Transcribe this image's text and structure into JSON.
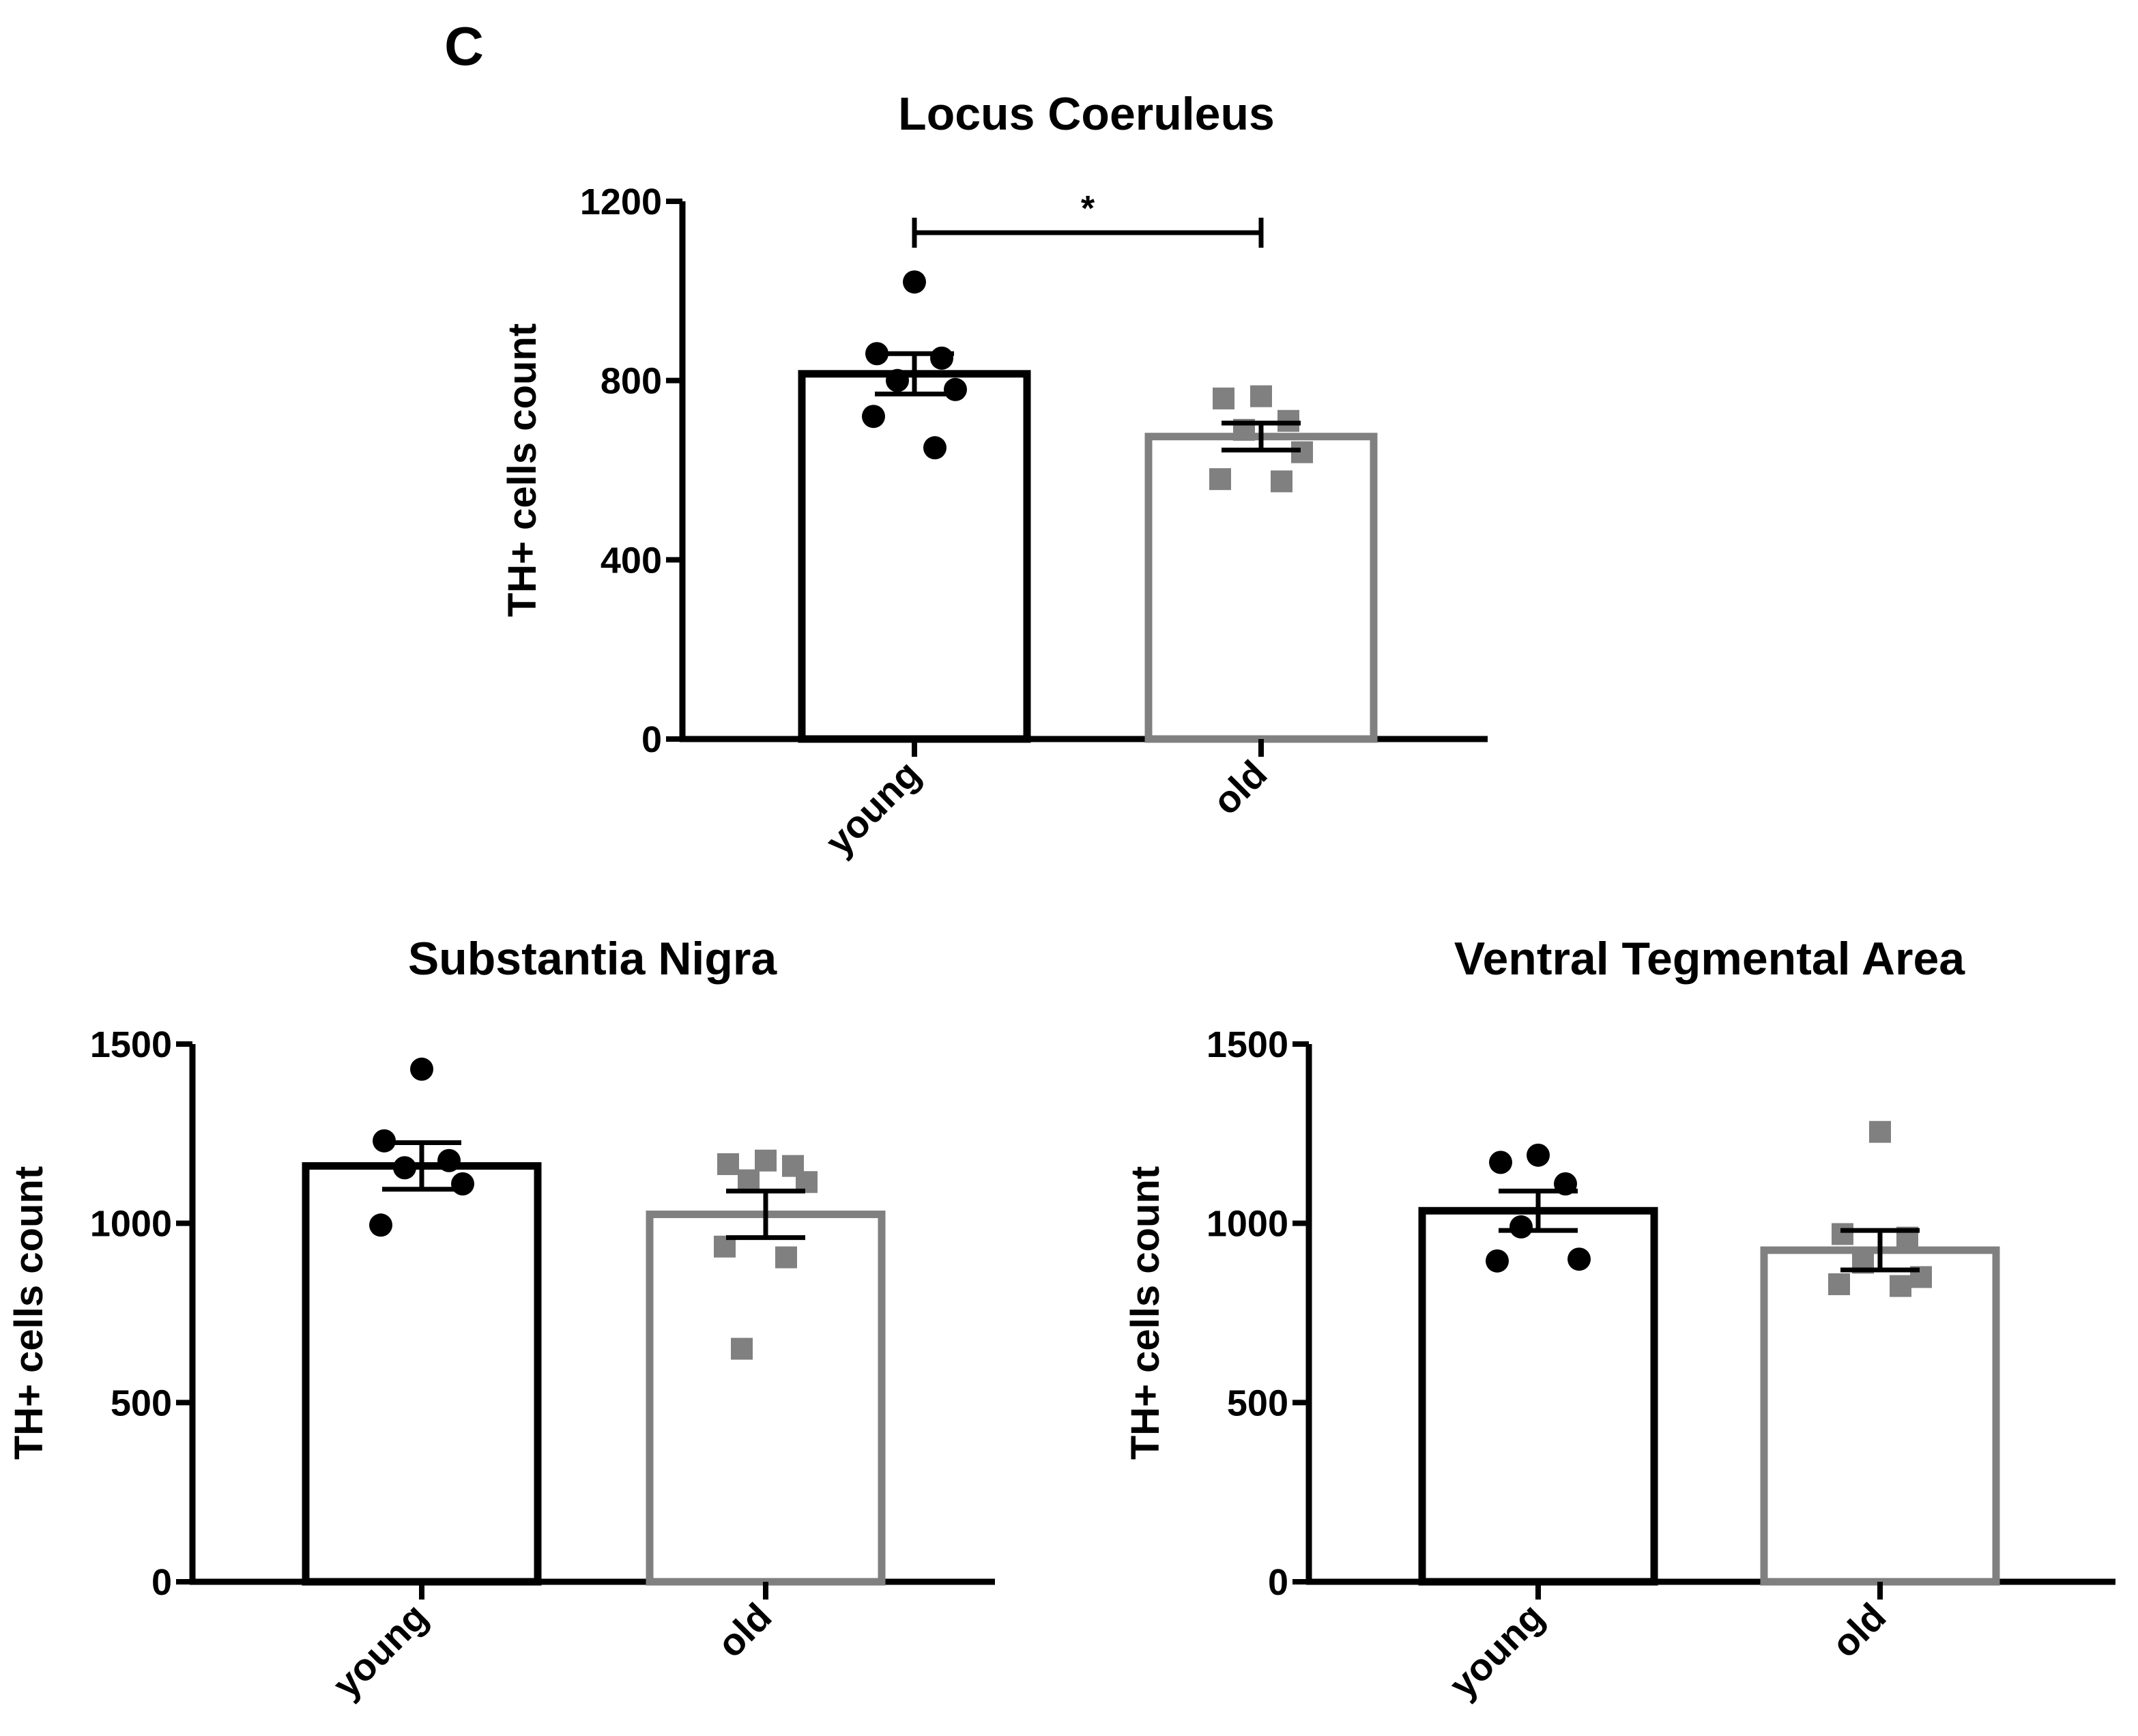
{
  "panel_label": "C",
  "chart_data": [
    {
      "type": "bar",
      "title": "Locus Coeruleus",
      "xlabel": "",
      "ylabel": "TH+ cells count",
      "ylim": [
        0,
        1200
      ],
      "yticks": [
        "0",
        "400",
        "800",
        "1200"
      ],
      "categories": [
        "young",
        "old"
      ],
      "values": [
        815,
        675
      ],
      "errors": [
        45,
        30
      ],
      "points": [
        [
          1020,
          860,
          850,
          800,
          780,
          720,
          650
        ],
        [
          765,
          760,
          710,
          690,
          640,
          580,
          575
        ]
      ],
      "colors": [
        "#000000",
        "#808080"
      ],
      "markers": [
        "circle",
        "square"
      ],
      "significance": {
        "label": "*",
        "between": [
          0,
          1
        ],
        "level": 1130
      }
    },
    {
      "type": "bar",
      "title": "Substantia Nigra",
      "xlabel": "",
      "ylabel": "TH+ cells count",
      "ylim": [
        0,
        1500
      ],
      "yticks": [
        "0",
        "500",
        "1000",
        "1500"
      ],
      "categories": [
        "young",
        "old"
      ],
      "values": [
        1160,
        1025
      ],
      "errors": [
        65,
        65
      ],
      "points": [
        [
          1430,
          1230,
          1175,
          1155,
          1110,
          995
        ],
        [
          1175,
          1165,
          1160,
          1120,
          1115,
          935,
          905,
          650
        ]
      ],
      "colors": [
        "#000000",
        "#808080"
      ],
      "markers": [
        "circle",
        "square"
      ]
    },
    {
      "type": "bar",
      "title": "Ventral Tegmental Area",
      "xlabel": "",
      "ylabel": "TH+ cells count",
      "ylim": [
        0,
        1500
      ],
      "yticks": [
        "0",
        "500",
        "1000",
        "1500"
      ],
      "categories": [
        "young",
        "old"
      ],
      "values": [
        1035,
        925
      ],
      "errors": [
        55,
        55
      ],
      "points": [
        [
          1190,
          1170,
          1110,
          990,
          900,
          895
        ],
        [
          1255,
          970,
          960,
          890,
          850,
          830,
          825
        ]
      ],
      "colors": [
        "#000000",
        "#808080"
      ],
      "markers": [
        "circle",
        "square"
      ]
    }
  ]
}
